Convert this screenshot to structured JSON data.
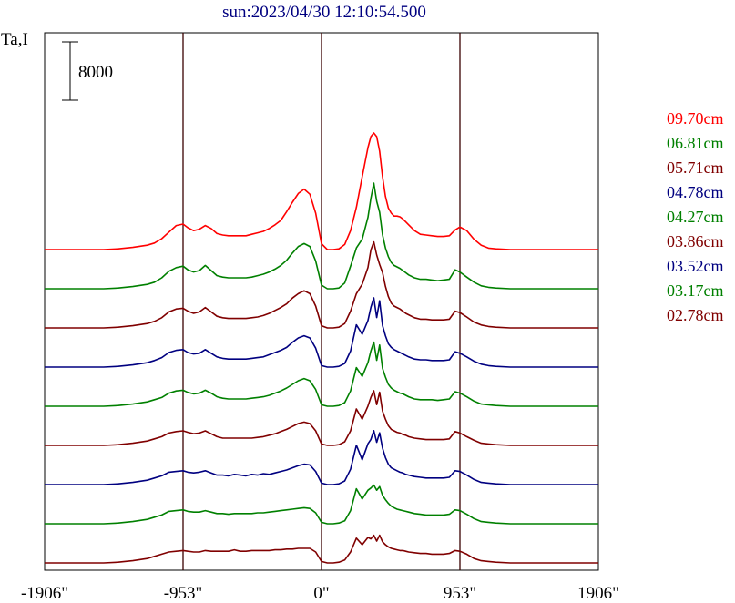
{
  "chart_data": {
    "type": "line",
    "title": "sun:2023/04/30 12:10:54.500",
    "ylabel": "Ta,I",
    "scale_bar_label": "8000",
    "x_ticks": [
      {
        "value": -1906,
        "label": "-1906\""
      },
      {
        "value": -953,
        "label": "-953\""
      },
      {
        "value": 0,
        "label": "0\""
      },
      {
        "value": 953,
        "label": "953\""
      },
      {
        "value": 1906,
        "label": "1906\""
      }
    ],
    "xlim": [
      -1906,
      1906
    ],
    "vertical_lines": [
      -953,
      0,
      953
    ],
    "x": [
      -1906,
      -1800,
      -1700,
      -1600,
      -1500,
      -1400,
      -1300,
      -1200,
      -1150,
      -1100,
      -1050,
      -1000,
      -953,
      -920,
      -880,
      -840,
      -800,
      -760,
      -720,
      -680,
      -640,
      -600,
      -560,
      -520,
      -480,
      -440,
      -400,
      -360,
      -320,
      -280,
      -240,
      -200,
      -160,
      -120,
      -80,
      -40,
      0,
      40,
      80,
      120,
      160,
      200,
      240,
      280,
      320,
      340,
      360,
      380,
      400,
      420,
      440,
      460,
      480,
      500,
      520,
      540,
      560,
      580,
      600,
      640,
      680,
      720,
      760,
      800,
      840,
      880,
      920,
      953,
      1000,
      1050,
      1100,
      1150,
      1200,
      1300,
      1400,
      1500,
      1600,
      1700,
      1800,
      1906
    ],
    "series": [
      {
        "name": "09.70cm",
        "color": "#ff0000",
        "values": [
          0,
          0,
          0,
          0,
          0,
          100,
          300,
          600,
          900,
          1500,
          2400,
          3300,
          3500,
          3000,
          2600,
          2800,
          3300,
          2900,
          2200,
          2000,
          1900,
          1900,
          1900,
          1900,
          2100,
          2300,
          2500,
          2900,
          3400,
          4000,
          5200,
          6500,
          7700,
          8300,
          7600,
          5000,
          800,
          0,
          0,
          100,
          700,
          2600,
          5800,
          10000,
          14000,
          15500,
          16000,
          15500,
          13500,
          10000,
          7300,
          5700,
          5000,
          4600,
          4600,
          4500,
          4200,
          3800,
          3400,
          2600,
          2100,
          2000,
          1900,
          1800,
          1800,
          1900,
          2700,
          3100,
          2600,
          1400,
          600,
          200,
          100,
          0,
          0,
          0,
          0,
          0,
          0,
          0
        ]
      },
      {
        "name": "06.81cm",
        "color": "#008000",
        "values": [
          0,
          0,
          0,
          0,
          0,
          100,
          300,
          600,
          900,
          1500,
          2400,
          2900,
          3100,
          2600,
          2300,
          2500,
          3200,
          2500,
          1800,
          1600,
          1500,
          1500,
          1500,
          1500,
          1600,
          1800,
          2000,
          2300,
          2700,
          3200,
          3900,
          4900,
          5800,
          6200,
          5800,
          3800,
          500,
          0,
          0,
          100,
          800,
          3100,
          5600,
          6800,
          9800,
          12400,
          14500,
          12000,
          10500,
          7400,
          5600,
          4400,
          3600,
          3200,
          3000,
          2800,
          2500,
          2200,
          1900,
          1500,
          1300,
          1300,
          1200,
          1100,
          1200,
          1300,
          2600,
          2300,
          1600,
          900,
          400,
          200,
          100,
          0,
          0,
          0,
          0,
          0,
          0,
          0
        ]
      },
      {
        "name": "05.71cm",
        "color": "#800000",
        "values": [
          0,
          0,
          0,
          0,
          0,
          100,
          300,
          600,
          900,
          1400,
          2200,
          2600,
          2700,
          2300,
          2000,
          2200,
          2800,
          2200,
          1600,
          1400,
          1300,
          1300,
          1300,
          1300,
          1400,
          1500,
          1700,
          2000,
          2400,
          2800,
          3300,
          4100,
          4700,
          5100,
          4700,
          3000,
          300,
          0,
          0,
          100,
          600,
          2300,
          4700,
          6000,
          8300,
          10700,
          11800,
          10000,
          8700,
          7600,
          5700,
          4300,
          3400,
          3000,
          2800,
          2600,
          2300,
          2000,
          1800,
          1400,
          1200,
          1200,
          1100,
          1100,
          1100,
          1200,
          2300,
          2100,
          1500,
          800,
          400,
          200,
          100,
          0,
          0,
          0,
          0,
          0,
          0,
          0
        ]
      },
      {
        "name": "04.78cm",
        "color": "#000080",
        "values": [
          0,
          0,
          0,
          0,
          0,
          100,
          300,
          600,
          900,
          1300,
          2000,
          2300,
          2400,
          2000,
          1800,
          1900,
          2400,
          1900,
          1400,
          1200,
          1100,
          1100,
          1100,
          1100,
          1200,
          1300,
          1400,
          1700,
          2000,
          2300,
          2700,
          3400,
          4000,
          4300,
          4000,
          2600,
          200,
          0,
          0,
          100,
          500,
          2200,
          5800,
          4500,
          6400,
          8200,
          9500,
          6800,
          9100,
          5700,
          4300,
          3200,
          2700,
          2400,
          2200,
          2000,
          1800,
          1600,
          1400,
          1100,
          1000,
          1000,
          900,
          900,
          900,
          1000,
          2100,
          1900,
          1400,
          800,
          400,
          200,
          100,
          0,
          0,
          0,
          0,
          0,
          0,
          0
        ]
      },
      {
        "name": "04.27cm",
        "color": "#008000",
        "values": [
          0,
          0,
          0,
          0,
          0,
          100,
          300,
          600,
          900,
          1200,
          1800,
          2100,
          2200,
          1900,
          1700,
          1800,
          2200,
          1800,
          1300,
          1100,
          1000,
          1000,
          1000,
          1000,
          1100,
          1200,
          1300,
          1500,
          1800,
          2100,
          2500,
          3000,
          3500,
          3800,
          3500,
          2300,
          200,
          0,
          0,
          100,
          500,
          2100,
          5300,
          4100,
          6000,
          7600,
          8800,
          6300,
          8400,
          5200,
          4000,
          3000,
          2500,
          2200,
          2000,
          1800,
          1700,
          1500,
          1300,
          1000,
          900,
          900,
          900,
          800,
          900,
          1000,
          2000,
          1800,
          1300,
          700,
          300,
          200,
          100,
          0,
          0,
          0,
          0,
          0,
          0,
          0
        ]
      },
      {
        "name": "03.86cm",
        "color": "#800000",
        "values": [
          0,
          0,
          0,
          0,
          0,
          100,
          300,
          600,
          900,
          1200,
          1700,
          1900,
          2000,
          1800,
          1600,
          1700,
          2000,
          1600,
          1200,
          1000,
          1000,
          1000,
          1000,
          1000,
          1000,
          1100,
          1200,
          1400,
          1600,
          1900,
          2200,
          2600,
          3000,
          3200,
          3000,
          2000,
          200,
          0,
          0,
          100,
          500,
          2000,
          5000,
          3600,
          5400,
          6600,
          7500,
          5600,
          7300,
          4700,
          3600,
          2700,
          2200,
          2000,
          1800,
          1700,
          1500,
          1400,
          1200,
          1000,
          900,
          800,
          800,
          800,
          800,
          900,
          1900,
          1700,
          1200,
          700,
          300,
          200,
          100,
          0,
          0,
          0,
          0,
          0,
          0,
          0
        ]
      },
      {
        "name": "03.52cm",
        "color": "#000080",
        "values": [
          0,
          0,
          0,
          0,
          0,
          100,
          300,
          600,
          900,
          1200,
          1700,
          1800,
          1900,
          1700,
          1600,
          1700,
          1900,
          1600,
          1300,
          1300,
          1200,
          1400,
          1300,
          1200,
          1400,
          1300,
          1500,
          1400,
          1600,
          1800,
          2000,
          2300,
          2600,
          2800,
          2700,
          1800,
          200,
          0,
          0,
          100,
          500,
          2100,
          5400,
          3400,
          5600,
          6200,
          7400,
          5800,
          7100,
          5000,
          3700,
          2800,
          2300,
          2100,
          1900,
          1700,
          1600,
          1400,
          1300,
          1100,
          1000,
          900,
          900,
          900,
          900,
          1000,
          1900,
          1800,
          1300,
          700,
          300,
          200,
          100,
          0,
          0,
          0,
          0,
          0,
          0,
          0
        ]
      },
      {
        "name": "03.17cm",
        "color": "#008000",
        "values": [
          0,
          0,
          0,
          0,
          0,
          100,
          300,
          600,
          900,
          1200,
          1700,
          1800,
          1900,
          1700,
          1600,
          1600,
          1800,
          1600,
          1400,
          1400,
          1300,
          1400,
          1400,
          1400,
          1400,
          1500,
          1500,
          1600,
          1700,
          1800,
          1900,
          2000,
          2100,
          2200,
          2100,
          1500,
          200,
          0,
          0,
          100,
          400,
          1800,
          4800,
          3400,
          4600,
          4900,
          5300,
          4600,
          5100,
          3900,
          3300,
          2800,
          2400,
          2200,
          2000,
          1900,
          1800,
          1700,
          1600,
          1400,
          1300,
          1200,
          1200,
          1200,
          1200,
          1300,
          1900,
          1800,
          1300,
          700,
          300,
          200,
          100,
          0,
          0,
          0,
          0,
          0,
          0,
          0
        ]
      },
      {
        "name": "02.78cm",
        "color": "#800000",
        "values": [
          0,
          0,
          0,
          0,
          0,
          100,
          300,
          600,
          900,
          1200,
          1500,
          1600,
          1700,
          1600,
          1500,
          1500,
          1700,
          1600,
          1600,
          1600,
          1600,
          1800,
          1600,
          1600,
          1700,
          1700,
          1700,
          1700,
          1800,
          1800,
          1900,
          1900,
          2000,
          2000,
          2000,
          1500,
          200,
          0,
          0,
          100,
          400,
          1500,
          3400,
          2500,
          3500,
          3300,
          3800,
          3000,
          3800,
          2900,
          2500,
          2200,
          2000,
          1900,
          1800,
          1700,
          1700,
          1600,
          1500,
          1400,
          1300,
          1300,
          1200,
          1200,
          1200,
          1300,
          1700,
          1600,
          1200,
          600,
          300,
          200,
          100,
          0,
          0,
          0,
          0,
          0,
          0,
          0
        ]
      }
    ]
  }
}
